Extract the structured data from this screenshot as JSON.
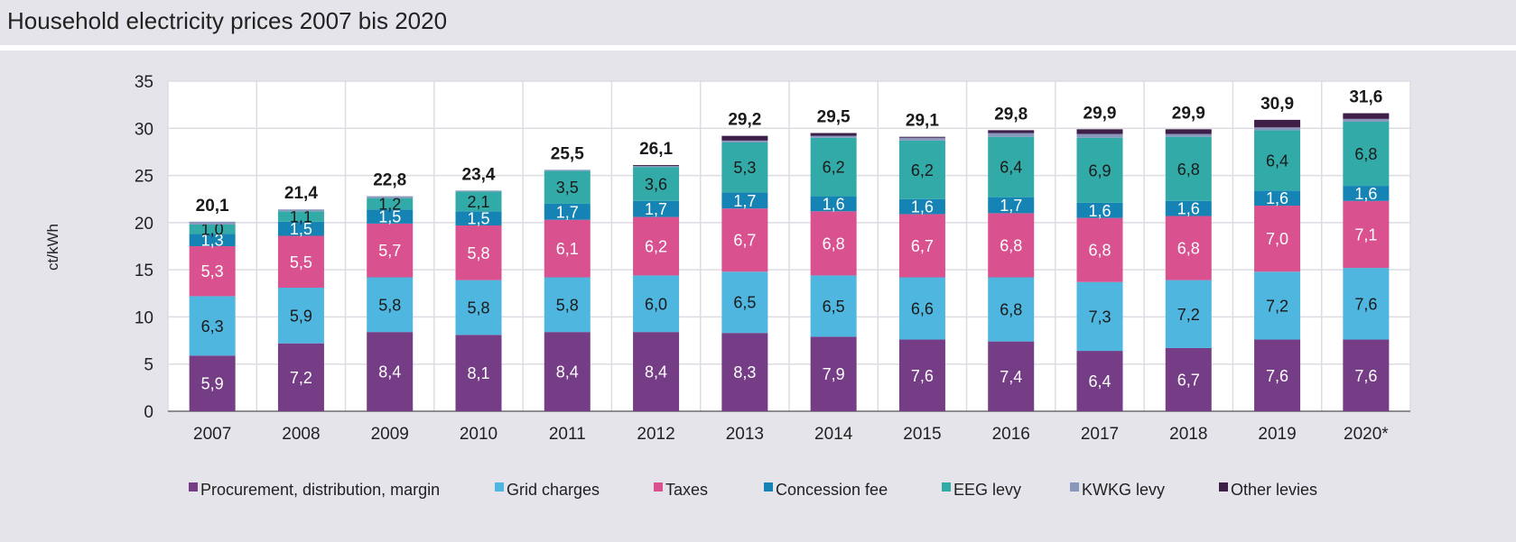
{
  "chart_data": {
    "type": "bar",
    "stacked": true,
    "title": "Household electricity prices 2007 bis 2020",
    "ylabel": "ct/kWh",
    "xlabel": "",
    "ylim": [
      0,
      35
    ],
    "yticks": [
      0,
      5,
      10,
      15,
      20,
      25,
      30,
      35
    ],
    "grid": true,
    "legend_position": "bottom",
    "categories": [
      "2007",
      "2008",
      "2009",
      "2010",
      "2011",
      "2012",
      "2013",
      "2014",
      "2015",
      "2016",
      "2017",
      "2018",
      "2019",
      "2020*"
    ],
    "totals": [
      "20,1",
      "21,4",
      "22,8",
      "23,4",
      "25,5",
      "26,1",
      "29,2",
      "29,5",
      "29,1",
      "29,8",
      "29,9",
      "29,9",
      "30,9",
      "31,6"
    ],
    "series": [
      {
        "name": "Procurement, distribution, margin",
        "color": "#753d85",
        "label_color": "#ffffff",
        "values": [
          5.9,
          7.2,
          8.4,
          8.1,
          8.4,
          8.4,
          8.3,
          7.9,
          7.6,
          7.4,
          6.4,
          6.7,
          7.6,
          7.6
        ],
        "labels": [
          "5,9",
          "7,2",
          "8,4",
          "8,1",
          "8,4",
          "8,4",
          "8,3",
          "7,9",
          "7,6",
          "7,4",
          "6,4",
          "6,7",
          "7,6",
          "7,6"
        ]
      },
      {
        "name": "Grid charges",
        "color": "#4fb6e0",
        "label_color": "#1a1a1a",
        "values": [
          6.3,
          5.9,
          5.8,
          5.8,
          5.8,
          6.0,
          6.5,
          6.5,
          6.6,
          6.8,
          7.3,
          7.2,
          7.2,
          7.6
        ],
        "labels": [
          "6,3",
          "5,9",
          "5,8",
          "5,8",
          "5,8",
          "6,0",
          "6,5",
          "6,5",
          "6,6",
          "6,8",
          "7,3",
          "7,2",
          "7,2",
          "7,6"
        ]
      },
      {
        "name": "Taxes",
        "color": "#d9528f",
        "label_color": "#ffffff",
        "values": [
          5.3,
          5.5,
          5.7,
          5.8,
          6.1,
          6.2,
          6.7,
          6.8,
          6.7,
          6.8,
          6.8,
          6.8,
          7.0,
          7.1
        ],
        "labels": [
          "5,3",
          "5,5",
          "5,7",
          "5,8",
          "6,1",
          "6,2",
          "6,7",
          "6,8",
          "6,7",
          "6,8",
          "6,8",
          "6,8",
          "7,0",
          "7,1"
        ]
      },
      {
        "name": "Concession fee",
        "color": "#1584b4",
        "label_color": "#ffffff",
        "values": [
          1.3,
          1.5,
          1.5,
          1.5,
          1.7,
          1.7,
          1.7,
          1.6,
          1.6,
          1.7,
          1.6,
          1.6,
          1.6,
          1.6
        ],
        "labels": [
          "1,3",
          "1,5",
          "1,5",
          "1,5",
          "1,7",
          "1,7",
          "1,7",
          "1,6",
          "1,6",
          "1,7",
          "1,6",
          "1,6",
          "1,6",
          "1,6"
        ]
      },
      {
        "name": "EEG levy",
        "color": "#32aaa7",
        "label_color": "#1a1a1a",
        "values": [
          1.0,
          1.1,
          1.2,
          2.1,
          3.5,
          3.6,
          5.3,
          6.2,
          6.2,
          6.4,
          6.9,
          6.8,
          6.4,
          6.8
        ],
        "labels": [
          "1,0",
          "1,1",
          "1,2",
          "2,1",
          "3,5",
          "3,6",
          "5,3",
          "6,2",
          "6,2",
          "6,4",
          "6,9",
          "6,8",
          "6,4",
          "6,8"
        ]
      },
      {
        "name": "KWKG levy",
        "color": "#8a97bd",
        "label_color": "#1a1a1a",
        "values": [
          0.3,
          0.2,
          0.2,
          0.1,
          0.1,
          0.1,
          0.2,
          0.2,
          0.3,
          0.4,
          0.4,
          0.3,
          0.3,
          0.3
        ],
        "labels": []
      },
      {
        "name": "Other levies",
        "color": "#3e1f48",
        "label_color": "#ffffff",
        "values": [
          0.0,
          0.0,
          0.0,
          0.0,
          0.0,
          0.1,
          0.5,
          0.3,
          0.1,
          0.3,
          0.5,
          0.5,
          0.8,
          0.6
        ],
        "labels": []
      }
    ]
  }
}
